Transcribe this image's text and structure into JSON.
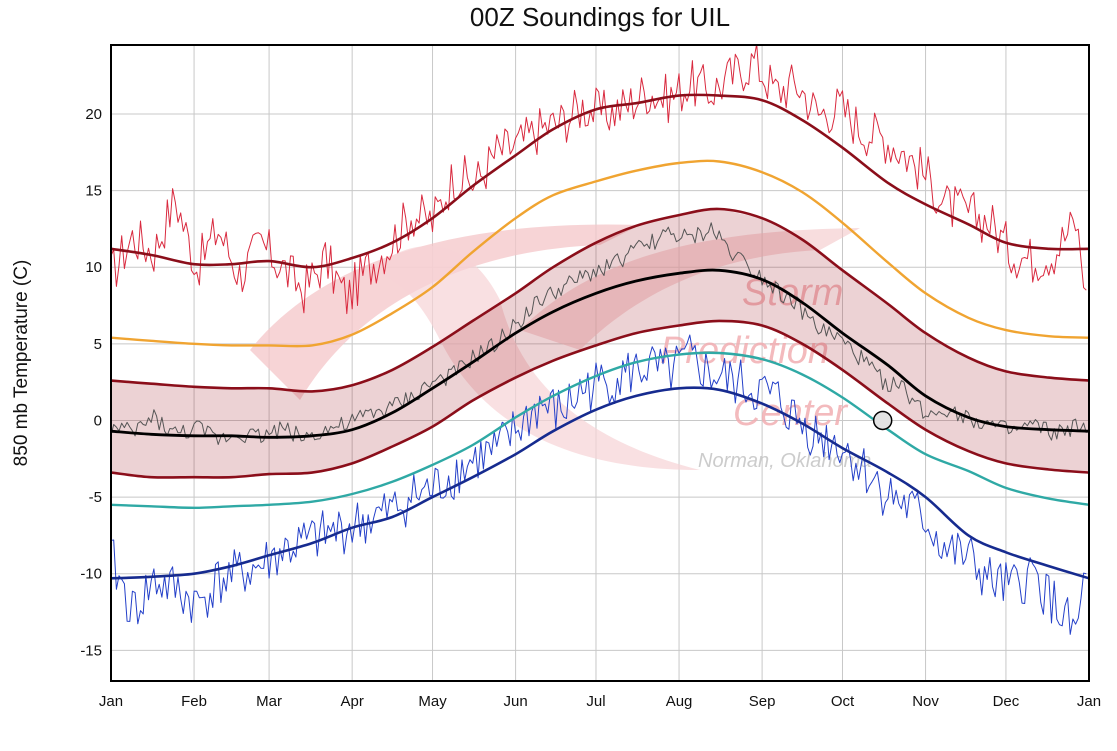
{
  "chart_data": {
    "type": "line",
    "title": "00Z Soundings for UIL",
    "ylabel": "850 mb Temperature (C)",
    "xlabel": "",
    "ylim": [
      -17,
      24.5
    ],
    "y_ticks": [
      20,
      15,
      10,
      5,
      0,
      -5,
      -10,
      -15
    ],
    "x_ticks": [
      "Jan",
      "Feb",
      "Mar",
      "Apr",
      "May",
      "Jun",
      "Jul",
      "Aug",
      "Sep",
      "Oct",
      "Nov",
      "Dec",
      "Jan"
    ],
    "x_unit": "day of year (0-365)",
    "grid": true,
    "watermark": [
      "Storm",
      "Prediction",
      "Center",
      "Norman, Oklahoma"
    ],
    "series": [
      {
        "role": "record-max",
        "color": "#8b0e1a",
        "x": [
          0,
          15,
          31,
          45,
          59,
          75,
          90,
          105,
          120,
          135,
          151,
          165,
          181,
          196,
          212,
          227,
          243,
          258,
          273,
          290,
          304,
          320,
          334,
          350,
          365
        ],
        "values": [
          11.2,
          10.8,
          10.2,
          10.2,
          10.4,
          10.0,
          10.6,
          11.6,
          13.2,
          15.3,
          17.3,
          19.0,
          20.3,
          20.7,
          21.2,
          21.2,
          20.9,
          19.6,
          17.8,
          15.5,
          14.1,
          12.8,
          11.6,
          11.2,
          11.2
        ]
      },
      {
        "role": "upper-percentile",
        "color": "#f0a431",
        "x": [
          0,
          15,
          31,
          45,
          59,
          75,
          90,
          105,
          120,
          135,
          151,
          165,
          181,
          196,
          212,
          227,
          243,
          258,
          273,
          290,
          304,
          320,
          334,
          350,
          365
        ],
        "values": [
          5.4,
          5.2,
          5.0,
          4.9,
          4.9,
          4.9,
          5.6,
          7.0,
          8.7,
          11.0,
          13.2,
          14.7,
          15.6,
          16.3,
          16.8,
          16.9,
          16.2,
          14.9,
          12.9,
          10.3,
          8.3,
          6.7,
          5.9,
          5.5,
          5.4
        ]
      },
      {
        "role": "band-upper",
        "color": "#8b0e1a",
        "x": [
          0,
          15,
          31,
          45,
          59,
          75,
          90,
          105,
          120,
          135,
          151,
          165,
          181,
          196,
          212,
          227,
          243,
          258,
          273,
          290,
          304,
          320,
          334,
          350,
          365
        ],
        "values": [
          2.6,
          2.4,
          2.2,
          2.1,
          2.1,
          1.9,
          2.3,
          3.3,
          4.8,
          6.5,
          8.3,
          10.0,
          11.6,
          12.7,
          13.4,
          13.8,
          13.2,
          11.8,
          9.8,
          7.6,
          5.7,
          4.1,
          3.2,
          2.8,
          2.6
        ]
      },
      {
        "role": "mean",
        "color": "#000000",
        "x": [
          0,
          15,
          31,
          45,
          59,
          75,
          90,
          105,
          120,
          135,
          151,
          165,
          181,
          196,
          212,
          227,
          243,
          258,
          273,
          290,
          304,
          320,
          334,
          350,
          365
        ],
        "values": [
          -0.7,
          -0.9,
          -1.0,
          -1.0,
          -1.1,
          -1.0,
          -0.6,
          0.5,
          2.1,
          3.8,
          5.7,
          7.1,
          8.3,
          9.1,
          9.6,
          9.8,
          9.2,
          7.7,
          5.7,
          3.6,
          1.6,
          0.2,
          -0.4,
          -0.6,
          -0.7
        ]
      },
      {
        "role": "band-lower",
        "color": "#8b0e1a",
        "x": [
          0,
          15,
          31,
          45,
          59,
          75,
          90,
          105,
          120,
          135,
          151,
          165,
          181,
          196,
          212,
          227,
          243,
          258,
          273,
          290,
          304,
          320,
          334,
          350,
          365
        ],
        "values": [
          -3.4,
          -3.7,
          -3.7,
          -3.7,
          -3.5,
          -3.4,
          -2.8,
          -1.7,
          -0.4,
          1.3,
          2.8,
          3.9,
          4.9,
          5.7,
          6.2,
          6.5,
          6.2,
          5.0,
          3.3,
          1.1,
          -0.6,
          -2.0,
          -2.8,
          -3.2,
          -3.4
        ]
      },
      {
        "role": "lower-percentile",
        "color": "#2fa9a5",
        "x": [
          0,
          15,
          31,
          45,
          59,
          75,
          90,
          105,
          120,
          135,
          151,
          165,
          181,
          196,
          212,
          227,
          243,
          258,
          273,
          290,
          304,
          320,
          334,
          350,
          365
        ],
        "values": [
          -5.5,
          -5.6,
          -5.7,
          -5.6,
          -5.5,
          -5.3,
          -4.8,
          -4.0,
          -2.9,
          -1.6,
          0.2,
          1.6,
          2.9,
          3.8,
          4.3,
          4.4,
          4.0,
          3.0,
          1.5,
          -0.6,
          -2.2,
          -3.3,
          -4.4,
          -5.1,
          -5.5
        ]
      },
      {
        "role": "record-min",
        "color": "#162b8f",
        "x": [
          0,
          15,
          31,
          45,
          59,
          75,
          90,
          105,
          120,
          135,
          151,
          165,
          181,
          196,
          212,
          227,
          243,
          258,
          273,
          290,
          304,
          320,
          334,
          350,
          365
        ],
        "values": [
          -10.3,
          -10.2,
          -10.0,
          -9.5,
          -8.8,
          -8.0,
          -7.0,
          -6.3,
          -5.0,
          -3.7,
          -2.2,
          -0.7,
          0.7,
          1.6,
          2.1,
          2.0,
          1.1,
          -0.2,
          -1.8,
          -3.4,
          -5.0,
          -7.5,
          -8.6,
          -9.5,
          -10.3
        ]
      },
      {
        "role": "observed-max",
        "color": "#d92a3f",
        "x": [
          0,
          8,
          16,
          24,
          32,
          40,
          48,
          56,
          64,
          72,
          80,
          88,
          96,
          104,
          112,
          120,
          128,
          136,
          144,
          152,
          160,
          168,
          176,
          184,
          192,
          200,
          208,
          216,
          224,
          232,
          240,
          248,
          256,
          264,
          272,
          280,
          288,
          296,
          304,
          312,
          320,
          328,
          336,
          344,
          352,
          360,
          364
        ],
        "values": [
          9.5,
          12.0,
          11.0,
          14.5,
          10.0,
          12.5,
          9.5,
          11.5,
          10.0,
          8.5,
          10.5,
          8.0,
          10.0,
          11.5,
          13.5,
          13.0,
          16.0,
          15.5,
          17.5,
          18.0,
          19.0,
          19.5,
          20.5,
          20.0,
          20.5,
          21.5,
          21.0,
          22.0,
          21.5,
          22.5,
          23.5,
          21.5,
          22.0,
          20.0,
          20.5,
          19.0,
          18.5,
          17.5,
          16.0,
          14.0,
          13.5,
          13.0,
          11.0,
          10.5,
          11.0,
          13.0,
          8.5
        ]
      },
      {
        "role": "observed-mean",
        "color": "#555555",
        "x": [
          0,
          8,
          16,
          24,
          32,
          40,
          48,
          56,
          64,
          72,
          80,
          88,
          96,
          104,
          112,
          120,
          128,
          136,
          144,
          152,
          160,
          168,
          176,
          184,
          192,
          200,
          208,
          216,
          224,
          232,
          240,
          248,
          256,
          264,
          272,
          280,
          288,
          296,
          304,
          312,
          320,
          328,
          336,
          344,
          352,
          360,
          364
        ],
        "values": [
          -0.5,
          -0.8,
          0.2,
          -0.9,
          -0.5,
          -1.2,
          -0.8,
          -1.0,
          -0.5,
          -1.1,
          -0.6,
          -0.3,
          0.4,
          0.8,
          1.5,
          2.5,
          3.0,
          4.2,
          5.0,
          6.5,
          7.8,
          8.6,
          9.3,
          10.0,
          10.7,
          11.5,
          12.2,
          11.8,
          12.5,
          11.0,
          9.8,
          8.7,
          7.5,
          6.0,
          5.3,
          4.0,
          2.6,
          2.0,
          0.4,
          0.8,
          0.2,
          -0.3,
          -0.8,
          -0.3,
          -0.9,
          -0.4,
          -0.8
        ]
      },
      {
        "role": "observed-min",
        "color": "#2440c9",
        "x": [
          0,
          8,
          16,
          24,
          32,
          40,
          48,
          56,
          64,
          72,
          80,
          88,
          96,
          104,
          112,
          120,
          128,
          136,
          144,
          152,
          160,
          168,
          176,
          184,
          192,
          200,
          208,
          216,
          224,
          232,
          240,
          248,
          256,
          264,
          272,
          280,
          288,
          296,
          304,
          312,
          320,
          328,
          336,
          344,
          352,
          360,
          364
        ],
        "values": [
          -9.0,
          -12.5,
          -10.5,
          -11.0,
          -12.0,
          -10.5,
          -10.0,
          -9.5,
          -8.5,
          -8.0,
          -7.5,
          -7.0,
          -6.5,
          -6.0,
          -5.0,
          -4.5,
          -3.5,
          -2.5,
          -2.0,
          -0.5,
          1.0,
          0.5,
          2.0,
          2.5,
          3.0,
          3.5,
          3.0,
          4.0,
          3.0,
          2.5,
          2.0,
          1.5,
          0.0,
          -1.0,
          -1.5,
          -3.0,
          -4.5,
          -5.5,
          -6.5,
          -8.5,
          -9.0,
          -10.5,
          -11.0,
          -10.0,
          -12.0,
          -14.0,
          -10.0
        ]
      }
    ],
    "marker": {
      "x": 288,
      "value": 0.0
    }
  }
}
